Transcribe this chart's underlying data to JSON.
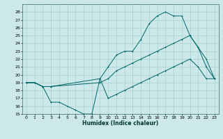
{
  "xlabel": "Humidex (Indice chaleur)",
  "bg_color": "#cce8e8",
  "grid_color": "#99cccc",
  "line_color": "#006666",
  "xlim": [
    -0.5,
    23.5
  ],
  "ylim": [
    15,
    29
  ],
  "yticks": [
    15,
    16,
    17,
    18,
    19,
    20,
    21,
    22,
    23,
    24,
    25,
    26,
    27,
    28
  ],
  "xticks": [
    0,
    1,
    2,
    3,
    4,
    5,
    6,
    7,
    8,
    9,
    10,
    11,
    12,
    13,
    14,
    15,
    16,
    17,
    18,
    19,
    20,
    21,
    22,
    23
  ],
  "line1_x": [
    0,
    1,
    2,
    3,
    9,
    10,
    11,
    12,
    13,
    14,
    15,
    16,
    17,
    18,
    19,
    20,
    21,
    22,
    23
  ],
  "line1_y": [
    19,
    19,
    18.5,
    18.5,
    19.5,
    21,
    22.5,
    23,
    23,
    24.5,
    26.5,
    27.5,
    28,
    27.5,
    27.5,
    25,
    23.5,
    21,
    19.5
  ],
  "line2_x": [
    0,
    1,
    2,
    3,
    9,
    10,
    11,
    12,
    13,
    14,
    15,
    16,
    17,
    18,
    19,
    20,
    21,
    22,
    23
  ],
  "line2_y": [
    19,
    19,
    18.5,
    18.5,
    19,
    19.5,
    20.5,
    21,
    21.5,
    22,
    22.5,
    23,
    23.5,
    24,
    24.5,
    25,
    23.5,
    22,
    19.5
  ],
  "line3_x": [
    0,
    1,
    2,
    3,
    4,
    5,
    6,
    7,
    8,
    9,
    10,
    11,
    12,
    13,
    14,
    15,
    16,
    17,
    18,
    19,
    20,
    21,
    22,
    23
  ],
  "line3_y": [
    19,
    19,
    18.5,
    16.5,
    16.5,
    16,
    15.5,
    15,
    15,
    19.5,
    17,
    17.5,
    18,
    18.5,
    19,
    19.5,
    20,
    20.5,
    21,
    21.5,
    22,
    21,
    19.5,
    19.5
  ]
}
